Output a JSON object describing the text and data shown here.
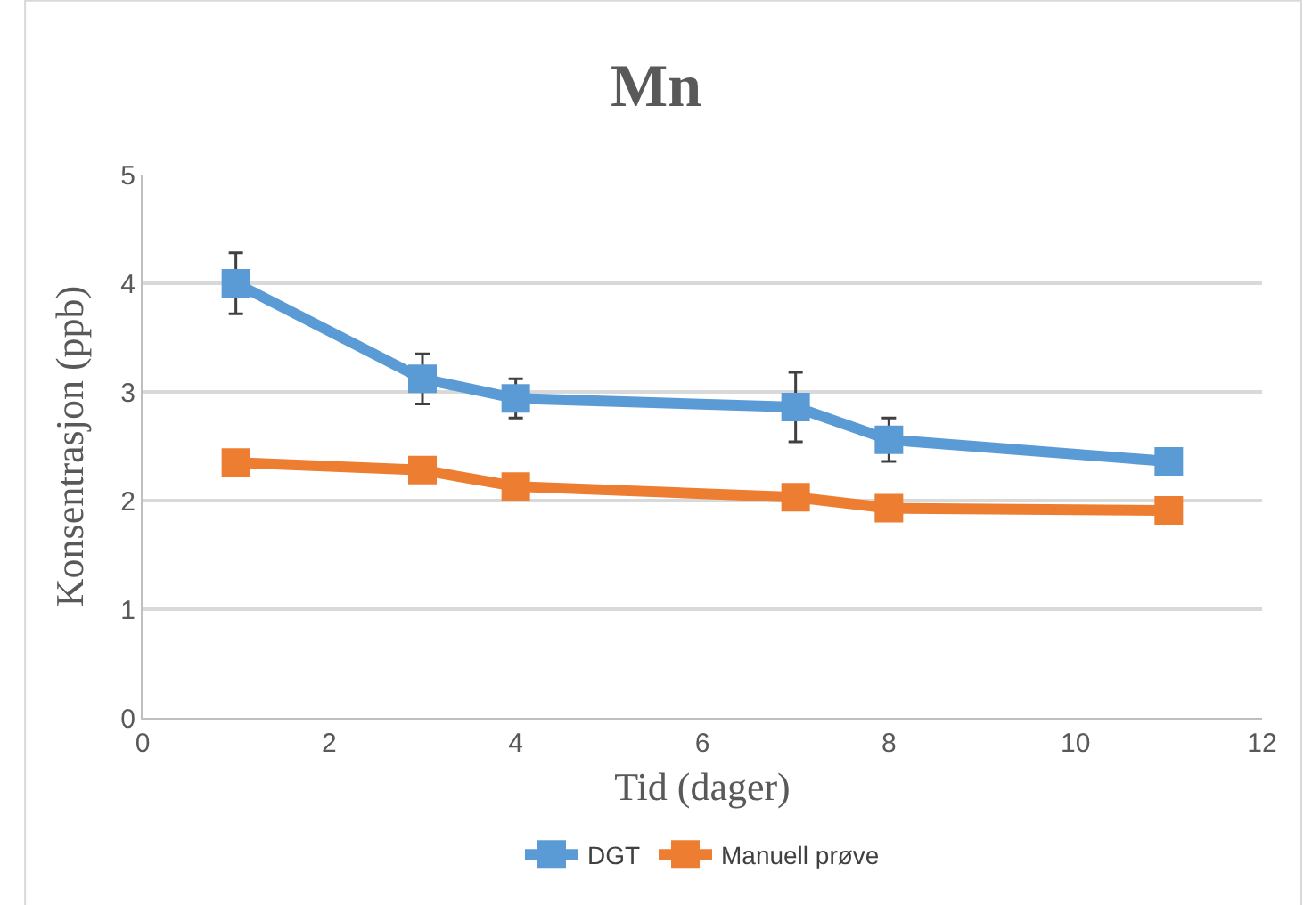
{
  "chart_data": {
    "type": "line",
    "title": "Mn",
    "xlabel": "Tid (dager)",
    "ylabel": "Konsentrasjon (ppb)",
    "x": [
      1,
      3,
      4,
      7,
      8,
      11
    ],
    "series": [
      {
        "name": "DGT",
        "color": "#5b9bd5",
        "values": [
          4.0,
          3.12,
          2.94,
          2.86,
          2.56,
          2.36
        ],
        "errors": [
          0.28,
          0.23,
          0.18,
          0.32,
          0.2,
          null
        ]
      },
      {
        "name": "Manuell prøve",
        "color": "#ed7d31",
        "values": [
          2.35,
          2.28,
          2.13,
          2.03,
          1.93,
          1.91
        ]
      }
    ],
    "xlim": [
      0,
      12
    ],
    "xticks": [
      0,
      2,
      4,
      6,
      8,
      10,
      12
    ],
    "ylim": [
      0,
      5
    ],
    "yticks": [
      0,
      1,
      2,
      3,
      4,
      5
    ],
    "grid": "y",
    "legend": "bottom",
    "marker": "square",
    "line_style": "solid"
  }
}
